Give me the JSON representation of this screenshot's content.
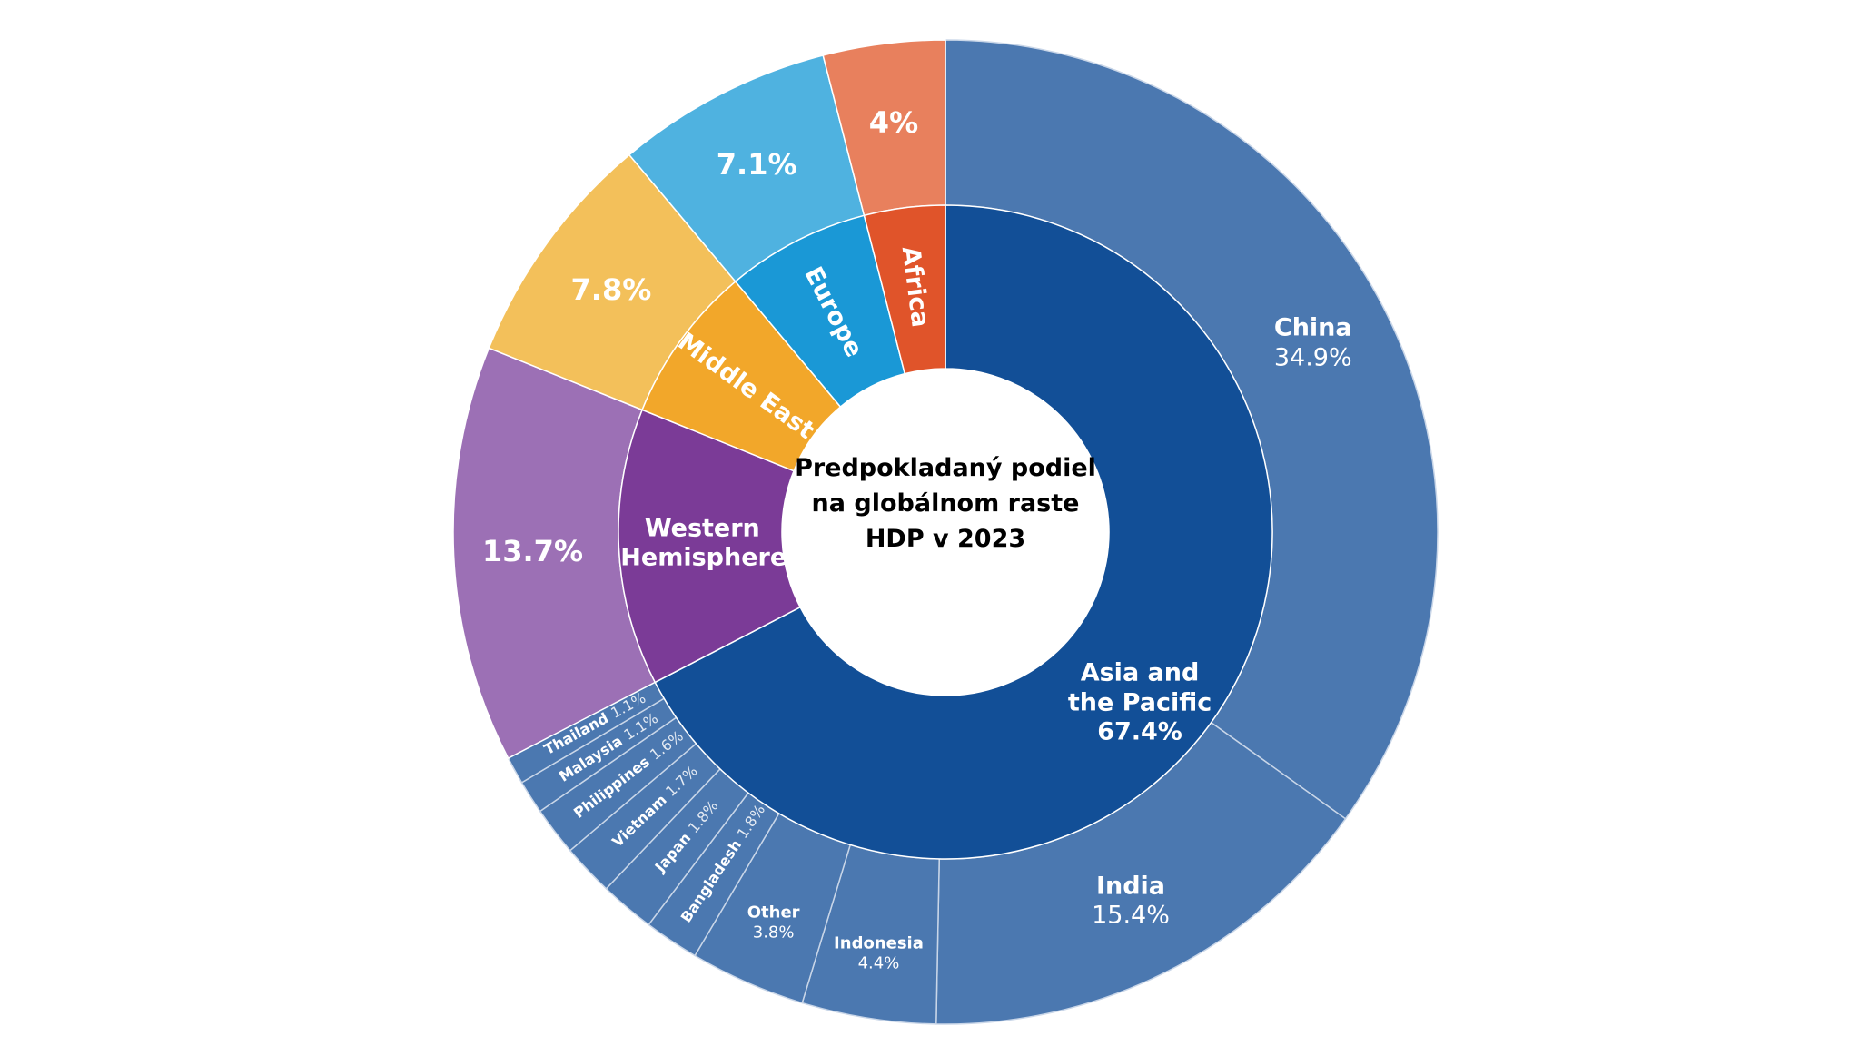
{
  "chart_data": {
    "type": "sunburst",
    "title": "Predpokladaný podiel na globálnom raste HDP v 2023",
    "regions": [
      {
        "name": "Asia and the Pacific",
        "value": 67.4,
        "value_label": "67.4%",
        "color": "#124f97",
        "outer_color": "#4b78b0",
        "children": [
          {
            "name": "China",
            "value": 34.9,
            "value_label": "34.9%"
          },
          {
            "name": "India",
            "value": 15.4,
            "value_label": "15.4%"
          },
          {
            "name": "Indonesia",
            "value": 4.4,
            "value_label": "4.4%"
          },
          {
            "name": "Other",
            "value": 3.8,
            "value_label": "3.8%"
          },
          {
            "name": "Bangladesh",
            "value": 1.8,
            "value_label": "1.8%"
          },
          {
            "name": "Japan",
            "value": 1.8,
            "value_label": "1.8%"
          },
          {
            "name": "Vietnam",
            "value": 1.7,
            "value_label": "1.7%"
          },
          {
            "name": "Philippines",
            "value": 1.6,
            "value_label": "1.6%"
          },
          {
            "name": "Malaysia",
            "value": 1.1,
            "value_label": "1.1%"
          },
          {
            "name": "Thailand",
            "value": 1.1,
            "value_label": "1.1%"
          }
        ]
      },
      {
        "name": "Western Hemisphere",
        "value": 13.7,
        "value_label": "13.7%",
        "color": "#7b3b97",
        "outer_color": "#9c70b5"
      },
      {
        "name": "Middle East",
        "value": 7.8,
        "value_label": "7.8%",
        "color": "#f2a72a",
        "outer_color": "#f3c05a"
      },
      {
        "name": "Europe",
        "value": 7.1,
        "value_label": "7.1%",
        "color": "#1a98d6",
        "outer_color": "#4fb2e0"
      },
      {
        "name": "Africa",
        "value": 4,
        "value_label": "4%",
        "color": "#e0542a",
        "outer_color": "#e8805d"
      }
    ]
  }
}
